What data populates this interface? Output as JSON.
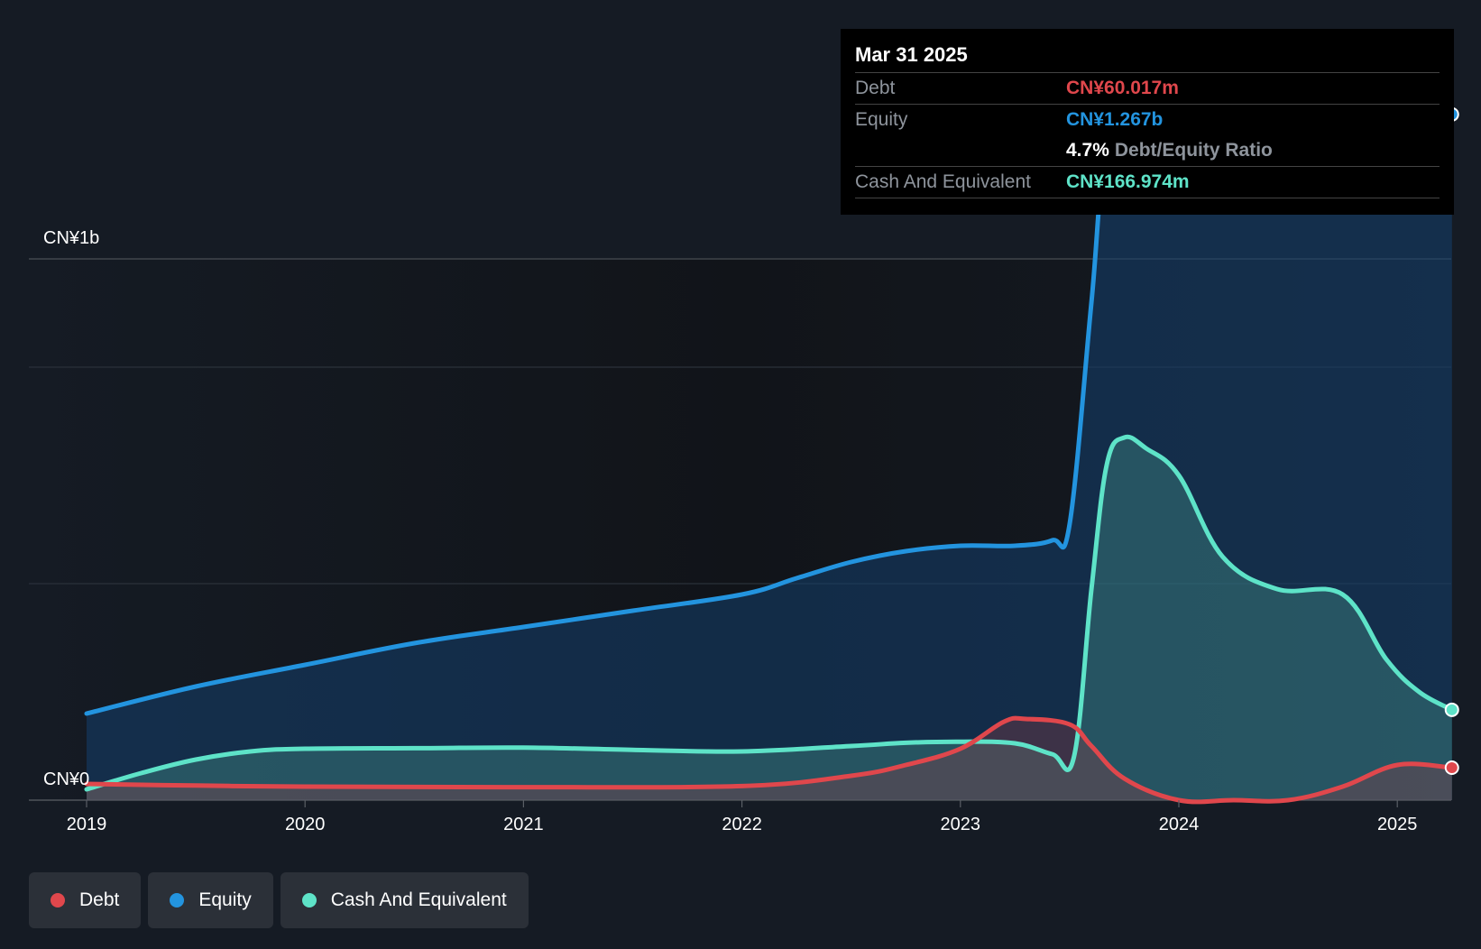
{
  "chart_data": {
    "type": "area",
    "y_axis": {
      "top_label": "CN¥1b",
      "bottom_label": "CN¥0",
      "ylim": [
        0,
        1.3
      ]
    },
    "x_ticks": [
      "2019",
      "2020",
      "2021",
      "2022",
      "2023",
      "2024",
      "2025"
    ],
    "series": [
      {
        "name": "Equity",
        "color": "#2394df",
        "points": [
          [
            2019.0,
            0.16
          ],
          [
            2019.5,
            0.21
          ],
          [
            2020.0,
            0.25
          ],
          [
            2020.5,
            0.29
          ],
          [
            2021.0,
            0.32
          ],
          [
            2021.5,
            0.35
          ],
          [
            2022.0,
            0.38
          ],
          [
            2022.25,
            0.41
          ],
          [
            2022.5,
            0.44
          ],
          [
            2022.75,
            0.46
          ],
          [
            2023.0,
            0.47
          ],
          [
            2023.25,
            0.47
          ],
          [
            2023.42,
            0.48
          ],
          [
            2023.5,
            0.51
          ],
          [
            2023.6,
            0.92
          ],
          [
            2023.67,
            1.21
          ],
          [
            2023.8,
            1.23
          ],
          [
            2024.0,
            1.245
          ],
          [
            2024.25,
            1.26
          ],
          [
            2024.5,
            1.255
          ],
          [
            2024.75,
            1.253
          ],
          [
            2025.0,
            1.257
          ],
          [
            2025.25,
            1.267
          ]
        ]
      },
      {
        "name": "Cash And Equivalent",
        "color": "#5ee3c8",
        "points": [
          [
            2019.0,
            0.02
          ],
          [
            2019.25,
            0.05
          ],
          [
            2019.5,
            0.075
          ],
          [
            2019.75,
            0.09
          ],
          [
            2020.0,
            0.095
          ],
          [
            2020.5,
            0.096
          ],
          [
            2021.0,
            0.097
          ],
          [
            2021.5,
            0.093
          ],
          [
            2022.0,
            0.09
          ],
          [
            2022.5,
            0.1
          ],
          [
            2022.75,
            0.106
          ],
          [
            2023.0,
            0.108
          ],
          [
            2023.25,
            0.105
          ],
          [
            2023.42,
            0.085
          ],
          [
            2023.52,
            0.08
          ],
          [
            2023.6,
            0.39
          ],
          [
            2023.67,
            0.62
          ],
          [
            2023.75,
            0.67
          ],
          [
            2023.85,
            0.65
          ],
          [
            2024.0,
            0.6
          ],
          [
            2024.2,
            0.45
          ],
          [
            2024.45,
            0.39
          ],
          [
            2024.75,
            0.38
          ],
          [
            2024.95,
            0.26
          ],
          [
            2025.1,
            0.2
          ],
          [
            2025.25,
            0.166974
          ]
        ]
      },
      {
        "name": "Debt",
        "color": "#e0474c",
        "points": [
          [
            2019.0,
            0.03
          ],
          [
            2019.5,
            0.027
          ],
          [
            2020.0,
            0.025
          ],
          [
            2021.0,
            0.024
          ],
          [
            2022.0,
            0.026
          ],
          [
            2022.5,
            0.045
          ],
          [
            2022.75,
            0.065
          ],
          [
            2023.0,
            0.095
          ],
          [
            2023.2,
            0.145
          ],
          [
            2023.3,
            0.15
          ],
          [
            2023.5,
            0.14
          ],
          [
            2023.6,
            0.1
          ],
          [
            2023.75,
            0.04
          ],
          [
            2024.0,
            0.0
          ],
          [
            2024.25,
            0.0
          ],
          [
            2024.5,
            0.0
          ],
          [
            2024.75,
            0.025
          ],
          [
            2025.0,
            0.065
          ],
          [
            2025.25,
            0.060017
          ]
        ]
      }
    ],
    "grid": true,
    "legend_placement": "bottom-left"
  },
  "tooltip": {
    "date": "Mar 31 2025",
    "debt_label": "Debt",
    "debt_value": "CN¥60.017m",
    "equity_label": "Equity",
    "equity_value": "CN¥1.267b",
    "ratio_value": "4.7%",
    "ratio_label": "Debt/Equity Ratio",
    "cash_label": "Cash And Equivalent",
    "cash_value": "CN¥166.974m"
  },
  "legend": [
    {
      "label": "Debt",
      "color": "#e0474c"
    },
    {
      "label": "Equity",
      "color": "#2394df"
    },
    {
      "label": "Cash And Equivalent",
      "color": "#5ee3c8"
    }
  ]
}
